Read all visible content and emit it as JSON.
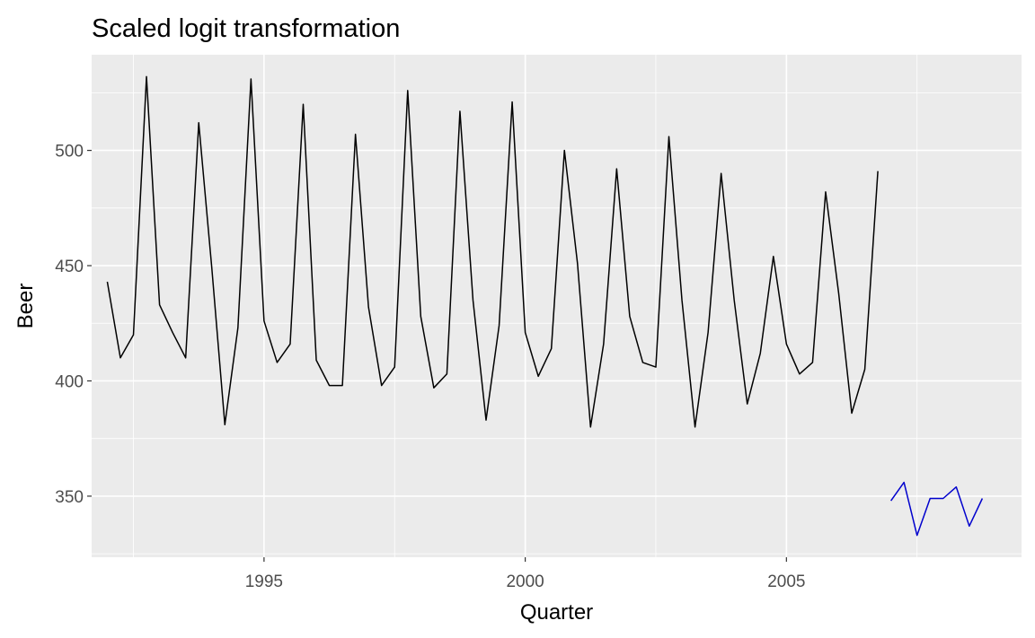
{
  "chart_data": {
    "type": "line",
    "title": "Scaled logit transformation",
    "xlabel": "Quarter",
    "ylabel": "Beer",
    "xlim": [
      1991.7,
      2009.5
    ],
    "ylim": [
      323.5,
      541.5
    ],
    "x_ticks": [
      1995,
      2000,
      2005
    ],
    "x_tick_labels": [
      "1995",
      "2000",
      "2005"
    ],
    "y_ticks": [
      350,
      400,
      450,
      500
    ],
    "y_tick_labels": [
      "350",
      "400",
      "450",
      "500"
    ],
    "grid": true,
    "legend": "none",
    "colors": {
      "panel": "#ebebeb",
      "grid": "#ffffff",
      "history": "#000000",
      "forecast": "#0000cd"
    },
    "series": [
      {
        "values": [
          {
            "x": "1992 Q1",
            "y": 443
          },
          {
            "x": "1992 Q2",
            "y": 410
          },
          {
            "x": "1992 Q3",
            "y": 420
          },
          {
            "x": "1992 Q4",
            "y": 532
          },
          {
            "x": "1993 Q1",
            "y": 433
          },
          {
            "x": "1993 Q2",
            "y": 421
          },
          {
            "x": "1993 Q3",
            "y": 410
          },
          {
            "x": "1993 Q4",
            "y": 512
          },
          {
            "x": "1994 Q1",
            "y": 449
          },
          {
            "x": "1994 Q2",
            "y": 381
          },
          {
            "x": "1994 Q3",
            "y": 423
          },
          {
            "x": "1994 Q4",
            "y": 531
          },
          {
            "x": "1995 Q1",
            "y": 426
          },
          {
            "x": "1995 Q2",
            "y": 408
          },
          {
            "x": "1995 Q3",
            "y": 416
          },
          {
            "x": "1995 Q4",
            "y": 520
          },
          {
            "x": "1996 Q1",
            "y": 409
          },
          {
            "x": "1996 Q2",
            "y": 398
          },
          {
            "x": "1996 Q3",
            "y": 398
          },
          {
            "x": "1996 Q4",
            "y": 507
          },
          {
            "x": "1997 Q1",
            "y": 432
          },
          {
            "x": "1997 Q2",
            "y": 398
          },
          {
            "x": "1997 Q3",
            "y": 406
          },
          {
            "x": "1997 Q4",
            "y": 526
          },
          {
            "x": "1998 Q1",
            "y": 428
          },
          {
            "x": "1998 Q2",
            "y": 397
          },
          {
            "x": "1998 Q3",
            "y": 403
          },
          {
            "x": "1998 Q4",
            "y": 517
          },
          {
            "x": "1999 Q1",
            "y": 435
          },
          {
            "x": "1999 Q2",
            "y": 383
          },
          {
            "x": "1999 Q3",
            "y": 424
          },
          {
            "x": "1999 Q4",
            "y": 521
          },
          {
            "x": "2000 Q1",
            "y": 421
          },
          {
            "x": "2000 Q2",
            "y": 402
          },
          {
            "x": "2000 Q3",
            "y": 414
          },
          {
            "x": "2000 Q4",
            "y": 500
          },
          {
            "x": "2001 Q1",
            "y": 451
          },
          {
            "x": "2001 Q2",
            "y": 380
          },
          {
            "x": "2001 Q3",
            "y": 416
          },
          {
            "x": "2001 Q4",
            "y": 492
          },
          {
            "x": "2002 Q1",
            "y": 428
          },
          {
            "x": "2002 Q2",
            "y": 408
          },
          {
            "x": "2002 Q3",
            "y": 406
          },
          {
            "x": "2002 Q4",
            "y": 506
          },
          {
            "x": "2003 Q1",
            "y": 435
          },
          {
            "x": "2003 Q2",
            "y": 380
          },
          {
            "x": "2003 Q3",
            "y": 421
          },
          {
            "x": "2003 Q4",
            "y": 490
          },
          {
            "x": "2004 Q1",
            "y": 435
          },
          {
            "x": "2004 Q2",
            "y": 390
          },
          {
            "x": "2004 Q3",
            "y": 412
          },
          {
            "x": "2004 Q4",
            "y": 454
          },
          {
            "x": "2005 Q1",
            "y": 416
          },
          {
            "x": "2005 Q2",
            "y": 403
          },
          {
            "x": "2005 Q3",
            "y": 408
          },
          {
            "x": "2005 Q4",
            "y": 482
          },
          {
            "x": "2006 Q1",
            "y": 438
          },
          {
            "x": "2006 Q2",
            "y": 386
          },
          {
            "x": "2006 Q3",
            "y": 405
          },
          {
            "x": "2006 Q4",
            "y": 491
          }
        ]
      },
      {
        "values": [
          {
            "x": "2007 Q1",
            "y": 348
          },
          {
            "x": "2007 Q2",
            "y": 356
          },
          {
            "x": "2007 Q3",
            "y": 333
          },
          {
            "x": "2007 Q4",
            "y": 349
          },
          {
            "x": "2008 Q1",
            "y": 349
          },
          {
            "x": "2008 Q2",
            "y": 354
          },
          {
            "x": "2008 Q3",
            "y": 337
          },
          {
            "x": "2008 Q4",
            "y": 349
          }
        ]
      }
    ]
  }
}
